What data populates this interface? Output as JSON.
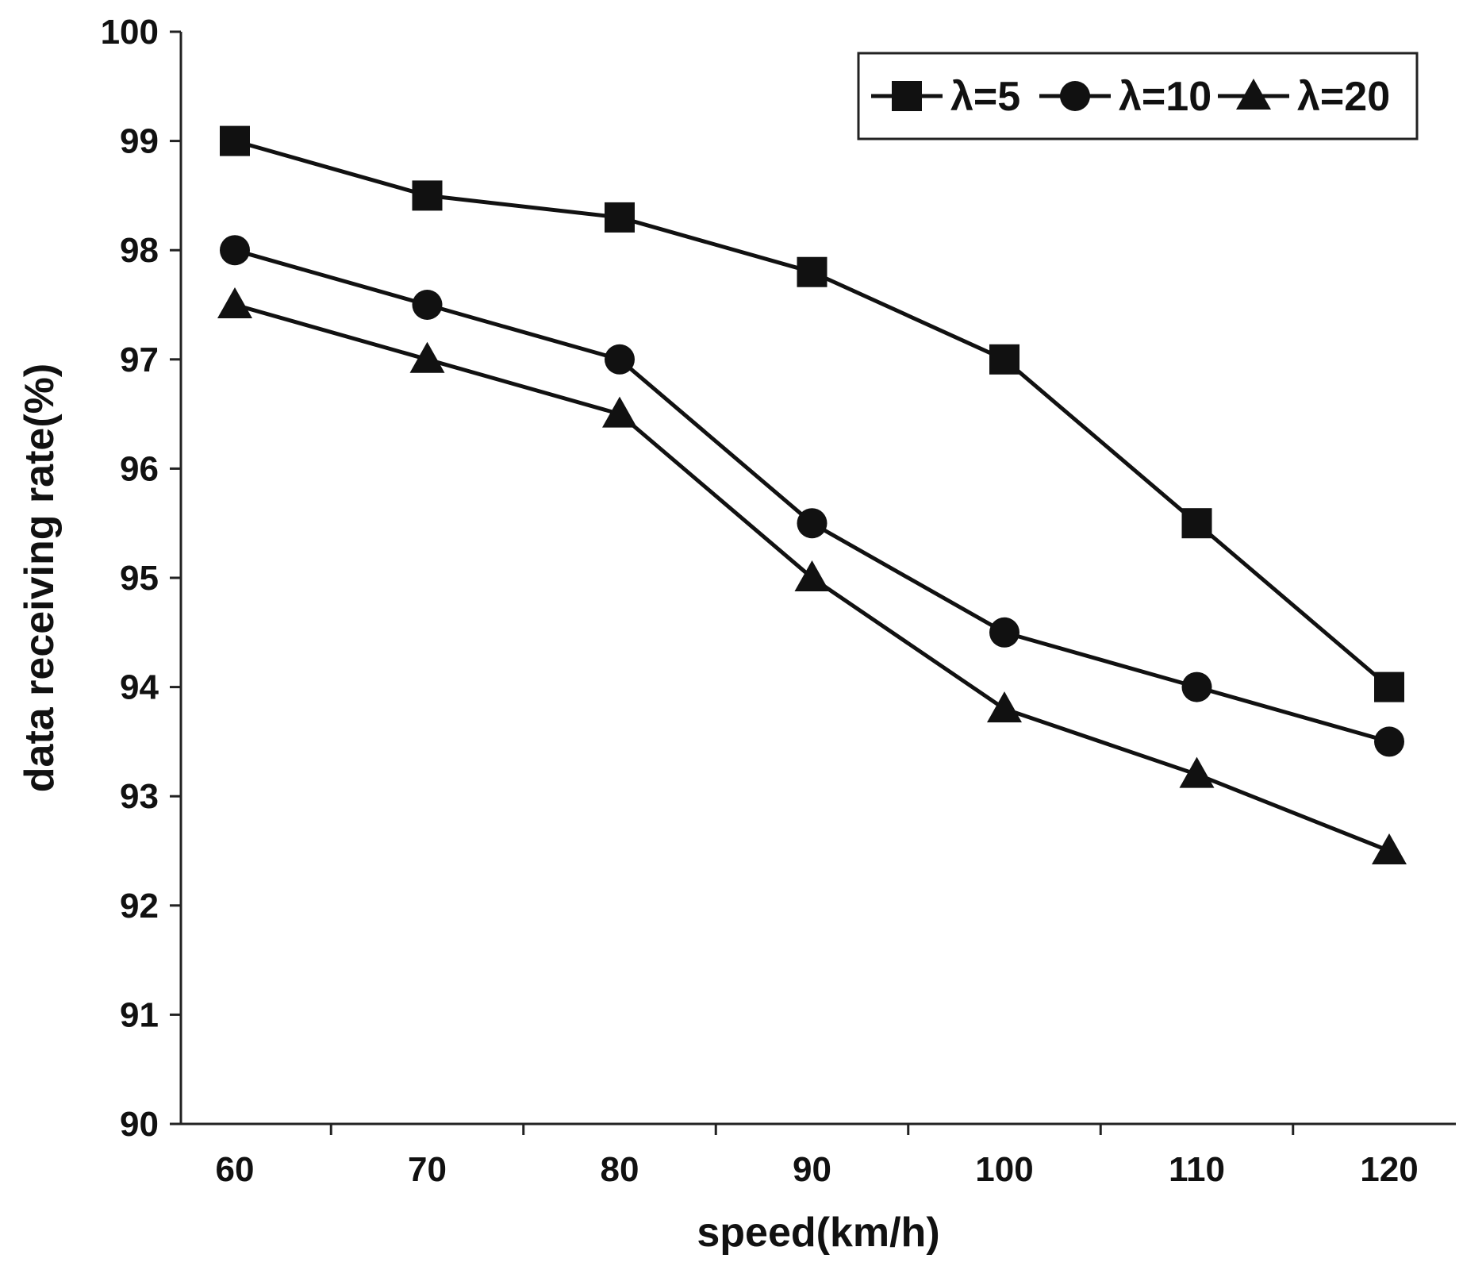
{
  "chart_data": {
    "type": "line",
    "title": "",
    "xlabel": "speed(km/h)",
    "ylabel": "data receiving rate(%)",
    "x": [
      60,
      70,
      80,
      90,
      100,
      110,
      120
    ],
    "x_tick_labels": [
      "60",
      "70",
      "80",
      "90",
      "100",
      "110",
      "120"
    ],
    "ylim": [
      90,
      100
    ],
    "y_ticks": [
      90,
      91,
      92,
      93,
      94,
      95,
      96,
      97,
      98,
      99,
      100
    ],
    "y_tick_labels": [
      "90",
      "91",
      "92",
      "93",
      "94",
      "95",
      "96",
      "97",
      "98",
      "99",
      "100"
    ],
    "grid": false,
    "legend_position": "top-right",
    "series": [
      {
        "name": "λ=5",
        "marker": "square",
        "values": [
          99.0,
          98.5,
          98.3,
          97.8,
          97.0,
          95.5,
          94.0
        ]
      },
      {
        "name": "λ=10",
        "marker": "circle",
        "values": [
          98.0,
          97.5,
          97.0,
          95.5,
          94.5,
          94.0,
          93.5
        ]
      },
      {
        "name": "λ=20",
        "marker": "triangle",
        "values": [
          97.5,
          97.0,
          96.5,
          95.0,
          93.8,
          93.2,
          92.5
        ]
      }
    ],
    "colors": {
      "line": "#111111",
      "axis": "#222222",
      "background": "#ffffff"
    }
  }
}
